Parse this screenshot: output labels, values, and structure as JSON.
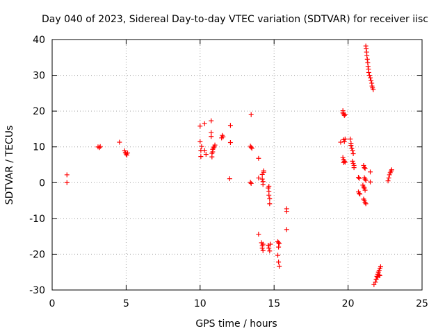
{
  "chart_data": {
    "type": "scatter",
    "title": "Day 040 of 2023, Sidereal Day-to-day VTEC variation (SDTVAR) for receiver iisc",
    "xlabel": "GPS time / hours",
    "ylabel": "SDTVAR / TECUs",
    "xlim": [
      0,
      25
    ],
    "ylim": [
      -30,
      40
    ],
    "xticks": [
      "0",
      "5",
      "10",
      "15",
      "20",
      "25"
    ],
    "yticks": [
      "-30",
      "-20",
      "-10",
      "0",
      "10",
      "20",
      "30",
      "40"
    ],
    "grid": true,
    "marker": "+",
    "color": "#ff0000",
    "series": [
      {
        "name": "SDTVAR",
        "points": [
          [
            1.0,
            2.2
          ],
          [
            1.0,
            0.0
          ],
          [
            3.1,
            10.0
          ],
          [
            3.2,
            9.8
          ],
          [
            3.25,
            10.1
          ],
          [
            4.55,
            11.3
          ],
          [
            4.9,
            8.9
          ],
          [
            4.95,
            8.4
          ],
          [
            5.0,
            8.0
          ],
          [
            5.05,
            7.7
          ],
          [
            5.1,
            8.3
          ],
          [
            10.0,
            15.8
          ],
          [
            10.0,
            11.5
          ],
          [
            10.05,
            9.0
          ],
          [
            10.05,
            7.3
          ],
          [
            10.1,
            10.1
          ],
          [
            10.3,
            16.5
          ],
          [
            10.3,
            9.0
          ],
          [
            10.4,
            7.9
          ],
          [
            10.75,
            17.3
          ],
          [
            10.75,
            14.0
          ],
          [
            10.75,
            12.9
          ],
          [
            10.8,
            8.2
          ],
          [
            10.8,
            7.2
          ],
          [
            10.85,
            9.3
          ],
          [
            10.9,
            9.7
          ],
          [
            10.95,
            10.0
          ],
          [
            11.0,
            10.5
          ],
          [
            10.85,
            8.6
          ],
          [
            11.45,
            12.5
          ],
          [
            11.5,
            13.2
          ],
          [
            11.55,
            12.8
          ],
          [
            12.05,
            16.0
          ],
          [
            12.05,
            11.2
          ],
          [
            12.0,
            1.1
          ],
          [
            13.45,
            19.0
          ],
          [
            13.4,
            10.2
          ],
          [
            13.45,
            9.9
          ],
          [
            13.5,
            9.6
          ],
          [
            13.4,
            0.1
          ],
          [
            13.45,
            -0.2
          ],
          [
            13.95,
            6.8
          ],
          [
            13.95,
            1.3
          ],
          [
            13.95,
            -14.4
          ],
          [
            14.2,
            2.3
          ],
          [
            14.2,
            1.0
          ],
          [
            14.25,
            0.3
          ],
          [
            14.25,
            -0.5
          ],
          [
            14.3,
            2.9
          ],
          [
            14.3,
            3.3
          ],
          [
            14.15,
            -16.8
          ],
          [
            14.2,
            -17.6
          ],
          [
            14.2,
            -18.3
          ],
          [
            14.25,
            -17.2
          ],
          [
            14.25,
            -19.0
          ],
          [
            14.6,
            -1.5
          ],
          [
            14.65,
            -2.5
          ],
          [
            14.65,
            -3.5
          ],
          [
            14.7,
            -4.5
          ],
          [
            14.7,
            -5.9
          ],
          [
            14.65,
            -1.0
          ],
          [
            14.6,
            -17.5
          ],
          [
            14.65,
            -18.3
          ],
          [
            14.7,
            -19.1
          ],
          [
            14.75,
            -17.2
          ],
          [
            15.25,
            -16.5
          ],
          [
            15.3,
            -16.8
          ],
          [
            15.3,
            -18.0
          ],
          [
            15.35,
            -17.0
          ],
          [
            15.25,
            -20.3
          ],
          [
            15.3,
            -22.2
          ],
          [
            15.35,
            -23.4
          ],
          [
            15.85,
            -7.3
          ],
          [
            15.85,
            -8.0
          ],
          [
            15.85,
            -13.1
          ],
          [
            19.5,
            11.3
          ],
          [
            19.65,
            20.1
          ],
          [
            19.65,
            19.5
          ],
          [
            19.7,
            19.2
          ],
          [
            19.75,
            18.8
          ],
          [
            19.8,
            19.0
          ],
          [
            19.7,
            12.0
          ],
          [
            19.8,
            12.2
          ],
          [
            19.75,
            11.5
          ],
          [
            19.65,
            7.0
          ],
          [
            19.7,
            6.4
          ],
          [
            19.75,
            6.0
          ],
          [
            19.8,
            5.7
          ],
          [
            19.7,
            5.6
          ],
          [
            20.15,
            12.2
          ],
          [
            20.2,
            11.0
          ],
          [
            20.2,
            10.4
          ],
          [
            20.25,
            9.6
          ],
          [
            20.3,
            9.0
          ],
          [
            20.35,
            8.1
          ],
          [
            20.3,
            6.0
          ],
          [
            20.35,
            5.4
          ],
          [
            20.4,
            4.8
          ],
          [
            20.4,
            4.2
          ],
          [
            20.7,
            1.5
          ],
          [
            20.75,
            1.2
          ],
          [
            20.7,
            -2.6
          ],
          [
            20.75,
            -3.0
          ],
          [
            20.8,
            -3.2
          ],
          [
            21.05,
            4.8
          ],
          [
            21.1,
            4.2
          ],
          [
            21.15,
            4.0
          ],
          [
            21.1,
            1.4
          ],
          [
            21.15,
            1.0
          ],
          [
            21.2,
            0.6
          ],
          [
            21.0,
            -0.7
          ],
          [
            21.05,
            -1.2
          ],
          [
            21.1,
            -1.5
          ],
          [
            21.15,
            -2.1
          ],
          [
            21.05,
            -4.6
          ],
          [
            21.1,
            -5.0
          ],
          [
            21.15,
            -5.5
          ],
          [
            21.2,
            -5.9
          ],
          [
            21.2,
            38.2
          ],
          [
            21.22,
            37.5
          ],
          [
            21.25,
            36.5
          ],
          [
            21.27,
            35.5
          ],
          [
            21.3,
            34.5
          ],
          [
            21.33,
            33.5
          ],
          [
            21.35,
            32.5
          ],
          [
            21.38,
            31.7
          ],
          [
            21.4,
            30.8
          ],
          [
            21.45,
            30.0
          ],
          [
            21.5,
            29.3
          ],
          [
            21.55,
            28.5
          ],
          [
            21.6,
            27.8
          ],
          [
            21.62,
            27.0
          ],
          [
            21.65,
            26.5
          ],
          [
            21.7,
            26.0
          ],
          [
            21.5,
            3.0
          ],
          [
            21.5,
            0.2
          ],
          [
            21.75,
            -28.5
          ],
          [
            21.85,
            -27.8
          ],
          [
            21.9,
            -27.0
          ],
          [
            21.95,
            -26.2
          ],
          [
            22.0,
            -25.6
          ],
          [
            22.05,
            -25.0
          ],
          [
            22.1,
            -24.5
          ],
          [
            22.15,
            -24.0
          ],
          [
            22.2,
            -23.5
          ],
          [
            22.0,
            -26.5
          ],
          [
            22.1,
            -25.8
          ],
          [
            22.15,
            -26.0
          ],
          [
            22.7,
            0.5
          ],
          [
            22.75,
            1.3
          ],
          [
            22.8,
            2.2
          ],
          [
            22.85,
            2.8
          ],
          [
            22.9,
            3.2
          ],
          [
            22.95,
            3.6
          ]
        ]
      }
    ]
  }
}
